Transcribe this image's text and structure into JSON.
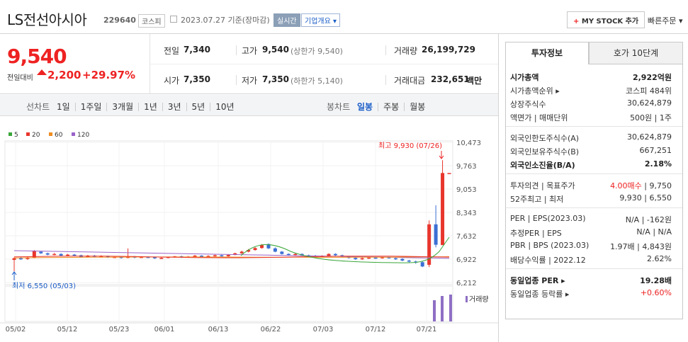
{
  "header": {
    "name": "LS전선아시아",
    "code": "229640",
    "market": "코스피",
    "date": "2023.07.27 기준(장마감)",
    "realtime": "실시간",
    "overview": "기업개요 ▾",
    "mystock": "MY STOCK 추가",
    "mystock_plus": "+",
    "quick_order": "빠른주문 ▾"
  },
  "price": {
    "current": "9,540",
    "prev_label": "전일대비",
    "change": "2,200",
    "change_pct": "+29.97%"
  },
  "stats": {
    "prev_close_label": "전일",
    "prev_close": "7,340",
    "high_label": "고가",
    "high": "9,540",
    "high_sub": "(상한가 9,540)",
    "volume_label": "거래량",
    "volume": "26,199,729",
    "open_label": "시가",
    "open": "7,350",
    "low_label": "저가",
    "low": "7,350",
    "low_sub": "(하한가 5,140)",
    "amount_label": "거래대금",
    "amount": "232,651",
    "amount_unit": "백만"
  },
  "period_bar": {
    "line_label": "선차트",
    "line_items": [
      "1일",
      "1주일",
      "3개월",
      "1년",
      "3년",
      "5년",
      "10년"
    ],
    "candle_label": "봉차트",
    "candle_items": [
      "일봉",
      "주봉",
      "월봉"
    ],
    "candle_active": "일봉"
  },
  "chart": {
    "legend": [
      {
        "label": "5",
        "color": "#39a639"
      },
      {
        "label": "20",
        "color": "#e8362d"
      },
      {
        "label": "60",
        "color": "#f08c1e"
      },
      {
        "label": "120",
        "color": "#9a63c9"
      }
    ],
    "y_ticks": [
      "10,473",
      "9,763",
      "9,053",
      "8,343",
      "7,632",
      "6,922",
      "6,212"
    ],
    "x_ticks": [
      "05/02",
      "05/12",
      "05/23",
      "06/01",
      "06/13",
      "06/22",
      "07/03",
      "07/12",
      "07/21"
    ],
    "high_label": "최고 9,930 (07/26)",
    "low_label": "최저 6,550 (05/03)",
    "volume_label": "거래량",
    "up_color": "#e8362d",
    "down_color": "#3b6fd4"
  },
  "panel": {
    "tab_invest": "투자정보",
    "tab_hoga": "호가 10단계",
    "rows1": [
      {
        "label": "시가총액",
        "value": "2,922억원",
        "bold": true
      },
      {
        "label": "시가총액순위 ▸",
        "value": "코스피 484위"
      },
      {
        "label": "상장주식수",
        "value": "30,624,879"
      },
      {
        "label": "액면가 | 매매단위",
        "value": "500원 | 1주"
      }
    ],
    "rows2": [
      {
        "label": "외국인한도주식수(A)",
        "value": "30,624,879"
      },
      {
        "label": "외국인보유주식수(B)",
        "value": "667,251"
      },
      {
        "label": "외국인소진율(B/A)",
        "value": "2.18%",
        "bold": true
      }
    ],
    "rows3": [
      {
        "label": "투자의견 | 목표주가",
        "value_red": "4.00매수",
        "value": " | 9,750"
      },
      {
        "label": "52주최고 | 최저",
        "value": "9,930 | 6,550"
      }
    ],
    "rows4": [
      {
        "label": "PER | EPS(2023.03)",
        "value": "N/A | -162원"
      },
      {
        "label": "추정PER | EPS",
        "value": "N/A | N/A"
      },
      {
        "label": "PBR | BPS (2023.03)",
        "value": "1.97배 | 4,843원"
      },
      {
        "label": "배당수익률 | 2022.12",
        "value": "2.62%"
      }
    ],
    "rows5": [
      {
        "label": "동일업종 PER ▸",
        "value": "19.28배",
        "bold": true
      },
      {
        "label": "동일업종 등락률 ▸",
        "value": "+0.60%",
        "red": true
      }
    ]
  }
}
